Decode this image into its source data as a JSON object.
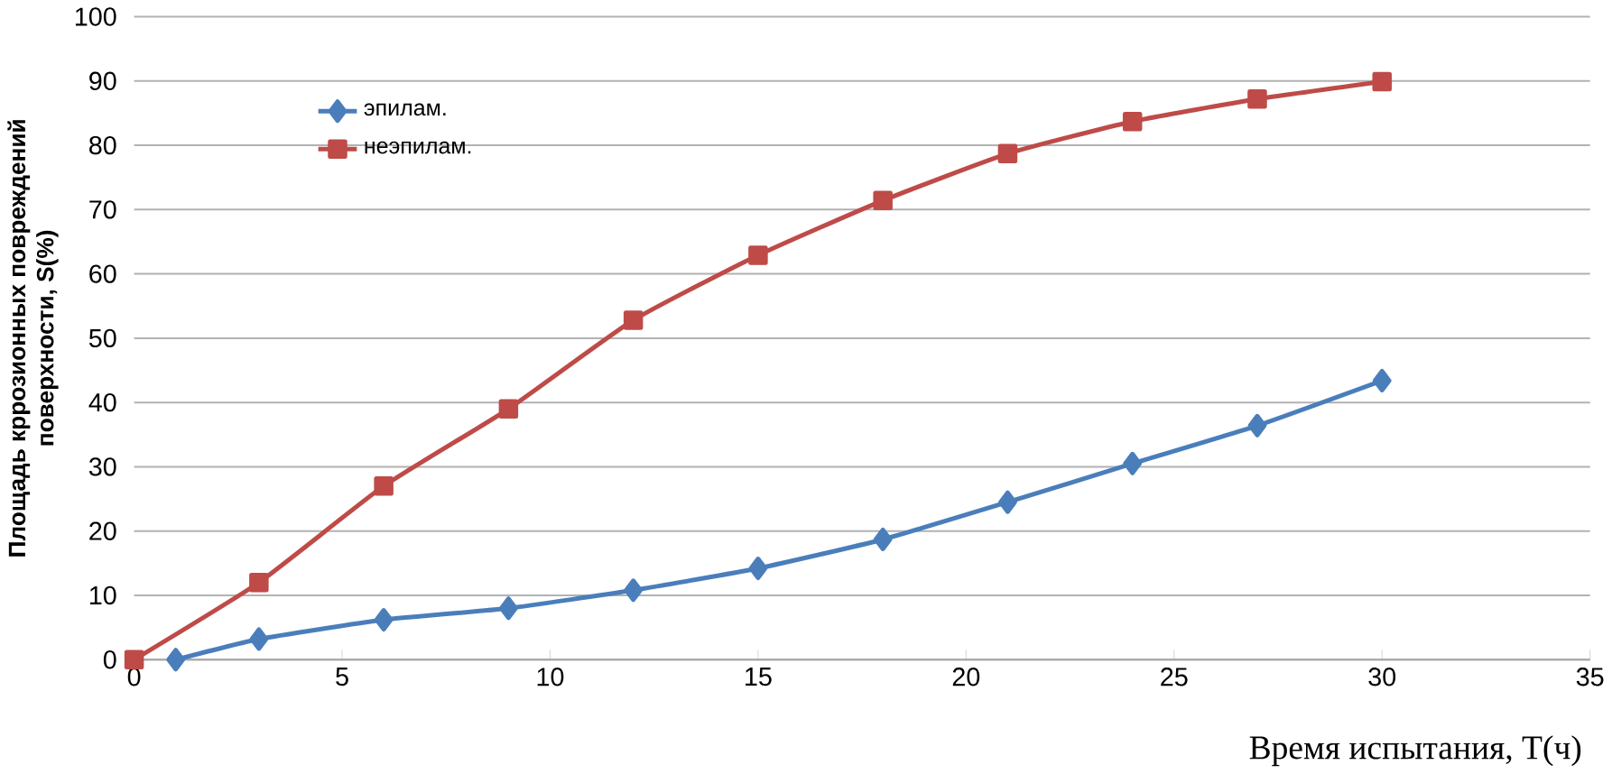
{
  "chart_data": {
    "type": "line",
    "xlabel": "Время испытания, T(ч)",
    "ylabel": "Площадь кррозионных повреждений поверхности, S(%)",
    "xlim": [
      0,
      35
    ],
    "xticks": [
      0,
      5,
      10,
      15,
      20,
      25,
      30,
      35
    ],
    "ylim": [
      0,
      100
    ],
    "yticks": [
      0,
      10,
      20,
      30,
      40,
      50,
      60,
      70,
      80,
      90,
      100
    ],
    "grid": "y",
    "legend": "top left",
    "series": [
      {
        "name": "эпилам.",
        "color": "#4a7ebb",
        "marker": "diamond",
        "x": [
          1,
          3,
          6,
          9,
          12,
          15,
          18,
          21,
          24,
          27,
          30
        ],
        "values": [
          0,
          3.2,
          6.2,
          8,
          10.8,
          14.2,
          18.7,
          24.5,
          30.5,
          36.4,
          43.4
        ]
      },
      {
        "name": "неэпилам.",
        "color": "#be4b48",
        "marker": "square",
        "x": [
          0,
          3,
          6,
          9,
          12,
          15,
          18,
          21,
          24,
          27,
          30
        ],
        "values": [
          0,
          12,
          27,
          39,
          52.8,
          62.9,
          71.4,
          78.7,
          83.7,
          87.2,
          89.9
        ]
      }
    ]
  }
}
